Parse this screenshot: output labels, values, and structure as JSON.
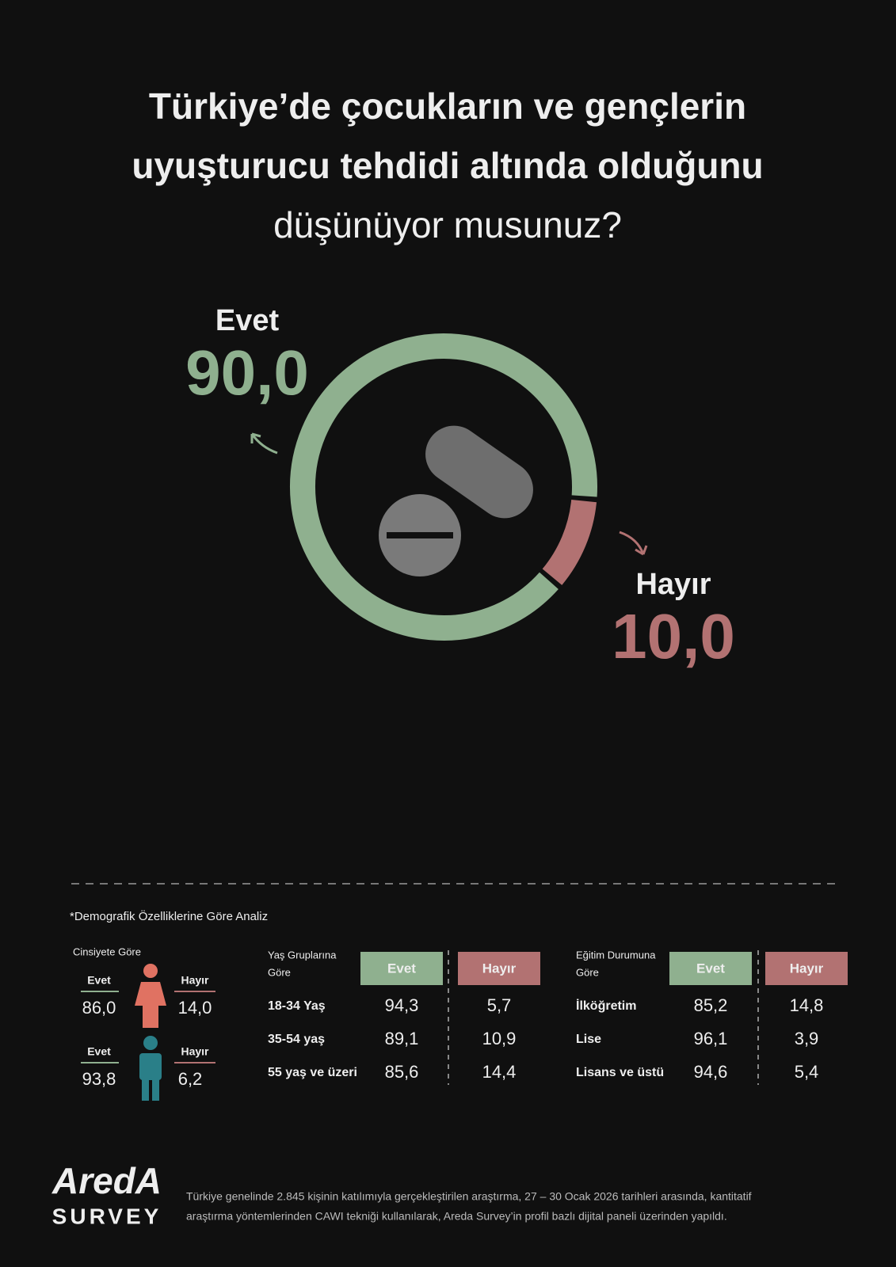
{
  "chart_data": {
    "type": "donut",
    "title": [
      "Türkiye’de çocukların ve gençlerin",
      "uyuşturucu tehdidi altında olduğunu",
      "düşünüyor musunuz?"
    ],
    "categories": [
      "Evet",
      "Hayır"
    ],
    "values": [
      90,
      10
    ],
    "value_labels": [
      "90,0",
      "10,0"
    ],
    "colors": [
      "#8fb08f",
      "#b27272"
    ]
  },
  "demographics": {
    "note": "*Demografik Özelliklerine Göre Analiz",
    "gender": {
      "heading": "Cinsiyete Göre",
      "rows": [
        {
          "yes_label": "Evet",
          "yes": "86,0",
          "no_label": "Hayır",
          "no": "14,0"
        },
        {
          "yes_label": "Evet",
          "yes": "93,8",
          "no_label": "Hayır",
          "no": "6,2"
        }
      ]
    },
    "age": {
      "heading": [
        "Yaş Gruplarına",
        "Göre"
      ],
      "columns": [
        "Evet",
        "Hayır"
      ],
      "rows": [
        [
          "18-34 Yaş",
          "94,3",
          "5,7"
        ],
        [
          "35-54 yaş",
          "89,1",
          "10,9"
        ],
        [
          "55 yaş ve üzeri",
          "85,6",
          "14,4"
        ]
      ]
    },
    "education": {
      "heading": [
        "Eğitim Durumuna",
        "Göre"
      ],
      "columns": [
        "Evet",
        "Hayır"
      ],
      "rows": [
        [
          "İlköğretim",
          "85,2",
          "14,8"
        ],
        [
          "Lise",
          "96,1",
          "3,9"
        ],
        [
          "Lisans ve üstü",
          "94,6",
          "5,4"
        ]
      ]
    }
  },
  "footer": {
    "logo": "AredA",
    "logo_sub": "SURVEY",
    "text": [
      "Türkiye genelinde 2.845 kişinin katılımıyla gerçekleştirilen araştırma, 27 – 30 Ocak 2026 tarihleri arasında, kantitatif",
      "araştırma yöntemlerinden CAWI tekniği kullanılarak, Areda Survey’in profil bazlı dijital paneli üzerinden yapıldı."
    ]
  }
}
